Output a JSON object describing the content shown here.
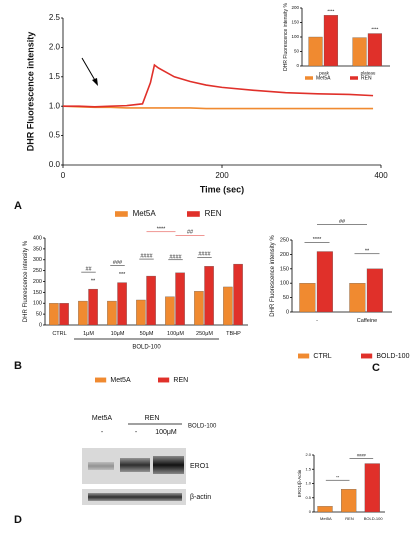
{
  "panel_labels": [
    "A",
    "B",
    "C",
    "D"
  ],
  "blot": {
    "cell_lines": [
      "Met5A",
      "REN"
    ],
    "treatments": [
      "-",
      "-",
      "100μM"
    ],
    "treatment_label": "BOLD-100",
    "bands": [
      "ERO1",
      "β-actin"
    ]
  },
  "chart_data": [
    {
      "type": "line",
      "xlabel": "Time (sec)",
      "ylabel": "DHR Fluorescence intensity",
      "x": [
        0,
        20,
        40,
        60,
        80,
        100,
        110,
        115,
        120,
        140,
        160,
        180,
        200,
        240,
        280,
        320,
        360,
        390
      ],
      "series": [
        {
          "name": "Met5A",
          "color": "#f08a30",
          "values": [
            1.0,
            0.99,
            0.98,
            0.98,
            0.97,
            0.97,
            0.97,
            0.97,
            0.97,
            0.97,
            0.97,
            0.96,
            0.96,
            0.96,
            0.96,
            0.96,
            0.96,
            0.96
          ]
        },
        {
          "name": "REN",
          "color": "#e0302a",
          "values": [
            1.0,
            1.0,
            0.99,
            1.0,
            1.01,
            1.04,
            1.4,
            1.7,
            1.65,
            1.5,
            1.42,
            1.36,
            1.32,
            1.27,
            1.23,
            1.21,
            1.2,
            1.18
          ]
        }
      ],
      "xlim": [
        0,
        400
      ],
      "xticks": [
        0,
        200,
        400
      ],
      "ylim": [
        0,
        2.5
      ],
      "yticks": [
        {
          "value": 0,
          "label": "0.0"
        },
        0.5,
        {
          "value": 1,
          "label": "1.0"
        },
        1.5,
        {
          "value": 2,
          "label": "2.0"
        },
        2.5
      ]
    },
    {
      "type": "bar",
      "ylabel": "DHR Fluorescence intensity %",
      "categories": [
        "peak",
        "plateau"
      ],
      "series": [
        {
          "name": "Met5A",
          "color": "#f08a30",
          "values": [
            100,
            98
          ]
        },
        {
          "name": "REN",
          "color": "#e0302a",
          "values": [
            175,
            112
          ]
        }
      ],
      "ylim": [
        0,
        200
      ],
      "yticks": [
        0,
        50,
        100,
        150,
        200
      ],
      "annotations": [
        {
          "text": "****",
          "color": "#111"
        },
        {
          "text": "****",
          "color": "#111"
        },
        {
          "text": "****",
          "color": "#111"
        }
      ]
    },
    {
      "type": "bar",
      "ylabel": "DHR Fluorescence intensity %",
      "group_label": "BOLD-100",
      "categories": [
        "CTRL",
        "1μM",
        "10μM",
        "50μM",
        "100μM",
        "250μM",
        "TBHP"
      ],
      "series": [
        {
          "name": "Met5A",
          "color": "#f08a30",
          "values": [
            100,
            110,
            110,
            115,
            130,
            155,
            175
          ]
        },
        {
          "name": "REN",
          "color": "#e0302a",
          "values": [
            100,
            165,
            195,
            225,
            240,
            270,
            280
          ]
        }
      ],
      "ylim": [
        0,
        400
      ],
      "yticks": [
        0,
        50,
        100,
        150,
        200,
        250,
        300,
        350,
        400
      ],
      "annotations": [
        {
          "text": "**",
          "color": "#e0302a"
        },
        {
          "text": "***",
          "color": "#e0302a"
        },
        {
          "text": "##",
          "color": "#111"
        },
        {
          "text": "###",
          "color": "#111"
        },
        {
          "text": "####",
          "color": "#111"
        },
        {
          "text": "####",
          "color": "#111"
        },
        {
          "text": "####",
          "color": "#111"
        },
        {
          "text": "****",
          "color": "#e0302a"
        },
        {
          "text": "##",
          "color": "#e0302a"
        }
      ]
    },
    {
      "type": "bar",
      "ylabel": "DHR Fluorescence intensity %",
      "categories": [
        "-",
        "Caffeine"
      ],
      "series": [
        {
          "name": "CTRL",
          "color": "#f08a30",
          "values": [
            100,
            100
          ]
        },
        {
          "name": "BOLD-100",
          "color": "#e0302a",
          "values": [
            210,
            150
          ]
        }
      ],
      "ylim": [
        0,
        250
      ],
      "yticks": [
        0,
        50,
        100,
        150,
        200,
        250
      ],
      "annotations": [
        {
          "text": "****",
          "color": "#111"
        },
        {
          "text": "##",
          "color": "#111"
        },
        {
          "text": "**",
          "color": "#111"
        }
      ]
    },
    {
      "type": "bar",
      "ylabel": "ERO1/β-Actin",
      "categories": [
        "Met5A",
        "REN",
        "BOLD-100"
      ],
      "series": [
        {
          "name": "ERO1/β-Actin",
          "colors": [
            "#f08a30",
            "#f08a30",
            "#e0302a"
          ],
          "values": [
            0.2,
            0.8,
            1.7
          ]
        }
      ],
      "ylim": [
        0,
        2
      ],
      "yticks": [
        0,
        0.5,
        {
          "value": 1,
          "label": "1.0"
        },
        1.5,
        {
          "value": 2,
          "label": "2.0"
        }
      ],
      "annotations": [
        {
          "text": "**",
          "color": "#111"
        },
        {
          "text": "####",
          "color": "#111"
        }
      ]
    }
  ]
}
